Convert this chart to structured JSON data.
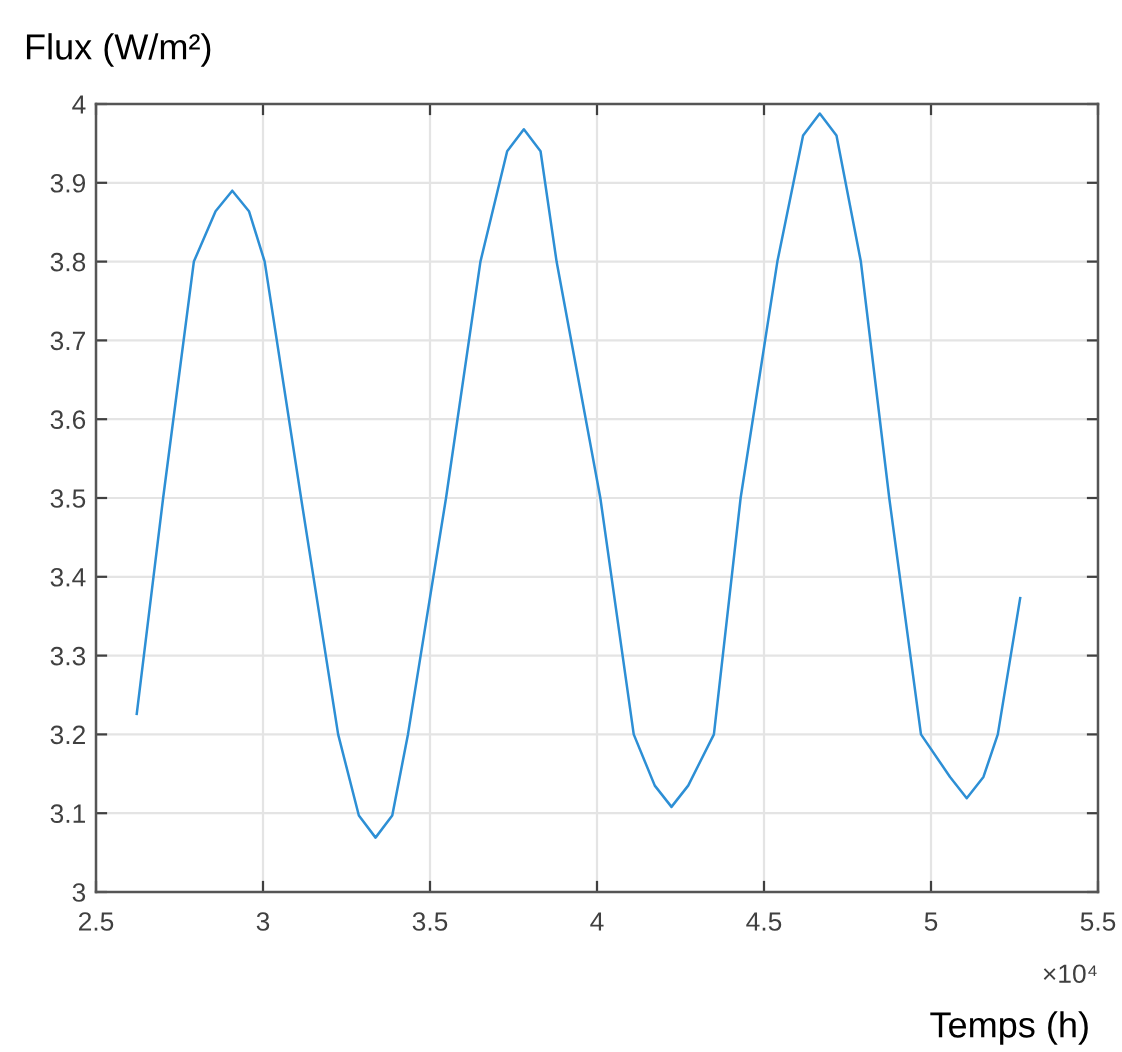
{
  "chart_data": {
    "type": "line",
    "ylabel": "Flux (W/m²)",
    "xlabel": "Temps (h)",
    "annotations": [
      "×10⁴"
    ],
    "x": [
      2.622,
      2.701,
      2.793,
      2.858,
      2.908,
      2.958,
      3.005,
      3.114,
      3.225,
      3.287,
      3.337,
      3.387,
      3.434,
      3.548,
      3.651,
      3.731,
      3.781,
      3.831,
      3.879,
      4.01,
      4.11,
      4.173,
      4.223,
      4.273,
      4.35,
      4.43,
      4.54,
      4.617,
      4.667,
      4.717,
      4.79,
      4.875,
      4.97,
      5.057,
      5.107,
      5.157,
      5.2,
      5.267
    ],
    "series": [
      {
        "color": "#2d8fd5",
        "values": [
          3.226,
          3.5,
          3.8,
          3.864,
          3.89,
          3.864,
          3.8,
          3.5,
          3.2,
          3.097,
          3.069,
          3.097,
          3.2,
          3.5,
          3.8,
          3.94,
          3.968,
          3.94,
          3.8,
          3.5,
          3.2,
          3.135,
          3.108,
          3.135,
          3.2,
          3.5,
          3.8,
          3.96,
          3.988,
          3.96,
          3.8,
          3.5,
          3.2,
          3.146,
          3.119,
          3.146,
          3.2,
          3.373
        ]
      }
    ],
    "xlim": [
      2.5,
      5.5
    ],
    "xticks": [
      2.5,
      3,
      3.5,
      4,
      4.5,
      5,
      5.5
    ],
    "ylim": [
      3,
      4
    ],
    "yticks": [
      3,
      3.1,
      3.2,
      3.3,
      3.4,
      3.5,
      3.6,
      3.7,
      3.8,
      3.9,
      4
    ],
    "grid": true
  }
}
